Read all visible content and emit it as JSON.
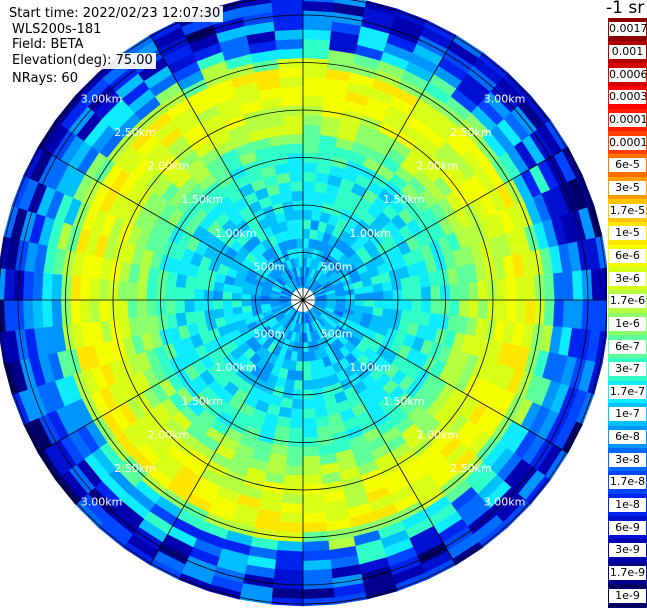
{
  "info": {
    "start_time": "Start time: 2022/02/23 12:07:30",
    "instrument": "WLS200s-181",
    "field": "Field: BETA",
    "elevation": "Elevation(deg): 75.00",
    "nrays": "NRays: 60"
  },
  "chart_data": {
    "type": "heatmap",
    "projection": "polar (PPI scan)",
    "field": "BETA",
    "elevation_deg": 75.0,
    "n_rays": 60,
    "range_rings_km": [
      0.5,
      1.0,
      1.5,
      2.0,
      2.5,
      3.0
    ],
    "range_ring_labels": [
      "500m",
      "1.00km",
      "1.50km",
      "2.00km",
      "2.50km",
      "3.00km"
    ],
    "spoke_angles_deg": [
      0,
      30,
      60,
      90,
      120,
      150,
      180,
      210,
      240,
      270,
      300,
      330
    ],
    "radial_profile": [
      {
        "range_km": 0.1,
        "beta": 6e-08
      },
      {
        "range_km": 0.5,
        "beta": 1e-07
      },
      {
        "range_km": 1.0,
        "beta": 1.7e-07
      },
      {
        "range_km": 1.5,
        "beta": 3e-07
      },
      {
        "range_km": 2.0,
        "beta": 3e-06
      },
      {
        "range_km": 2.4,
        "beta": 6e-06
      },
      {
        "range_km": 2.7,
        "beta": 6e-08
      },
      {
        "range_km": 3.0,
        "beta": 1e-08
      },
      {
        "range_km": 3.4,
        "beta": 6e-09
      }
    ],
    "colorbar": {
      "title": "-1 sr",
      "scale": "log",
      "labels": [
        "0.0017",
        "0.001",
        "0.0006",
        "0.0003",
        "0.00017",
        "0.0001",
        "6e-5",
        "3e-5",
        "1.7e-5",
        "1e-5",
        "6e-6",
        "3e-6",
        "1.7e-6",
        "1e-6",
        "6e-7",
        "3e-7",
        "1.7e-7",
        "1e-7",
        "6e-8",
        "3e-8",
        "1.7e-8",
        "1e-8",
        "6e-9",
        "3e-9",
        "1.7e-9",
        "1e-9"
      ],
      "colors": [
        "#8b0000",
        "#b00000",
        "#d40000",
        "#ff0000",
        "#ff1a00",
        "#ff4000",
        "#ff7000",
        "#ff9a00",
        "#ffc400",
        "#ffe600",
        "#f4ff00",
        "#d8ff18",
        "#b4ff40",
        "#8cff6a",
        "#5cff9a",
        "#30ffc8",
        "#10ecff",
        "#00c0ff",
        "#0096ff",
        "#006cff",
        "#0046ff",
        "#0024f0",
        "#0010d0",
        "#0000b0",
        "#00008a",
        "#000066"
      ]
    }
  }
}
